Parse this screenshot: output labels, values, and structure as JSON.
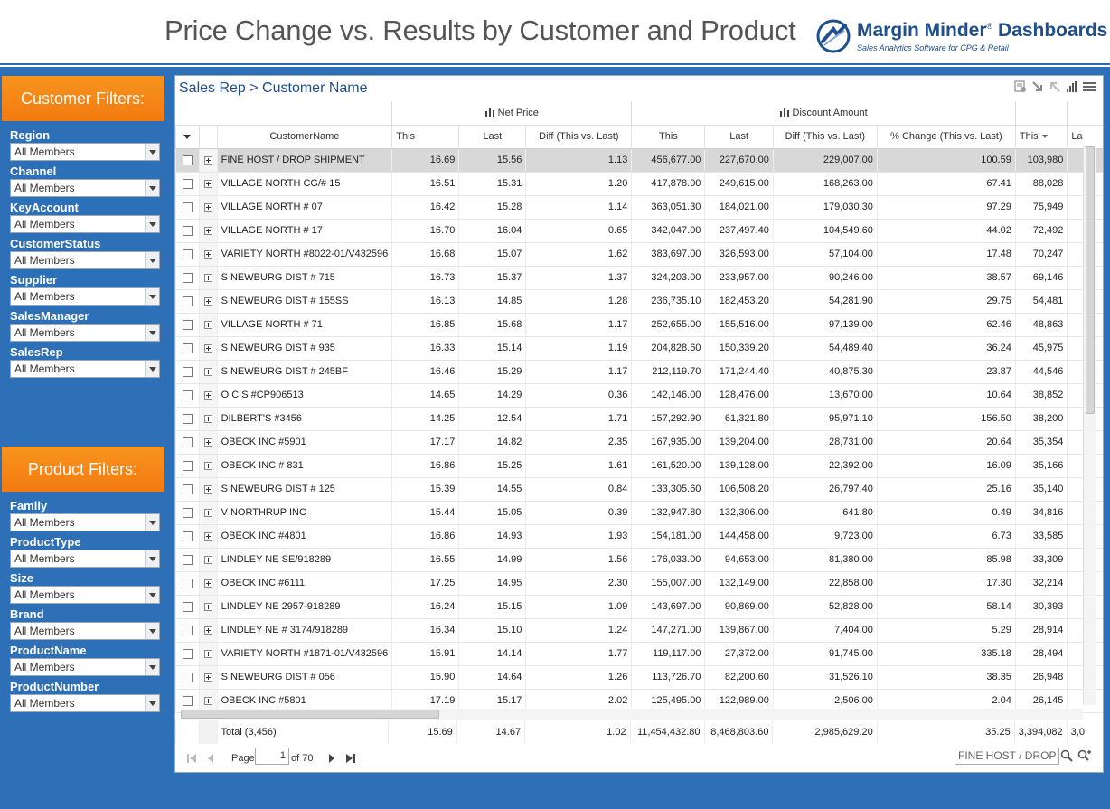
{
  "header": {
    "title": "Price Change vs. Results by Customer and Product",
    "logo_name": "Margin Minder",
    "logo_name_suffix": "Dashboards",
    "logo_tagline": "Sales Analytics Software for CPG & Retail"
  },
  "customer_filters": {
    "title": "Customer Filters:",
    "items": [
      {
        "label": "Region",
        "value": "All Members"
      },
      {
        "label": "Channel",
        "value": "All Members"
      },
      {
        "label": "KeyAccount",
        "value": "All Members"
      },
      {
        "label": "CustomerStatus",
        "value": "All Members"
      },
      {
        "label": "Supplier",
        "value": "All Members"
      },
      {
        "label": "SalesManager",
        "value": "All Members"
      },
      {
        "label": "SalesRep",
        "value": "All Members"
      }
    ]
  },
  "product_filters": {
    "title": "Product Filters:",
    "items": [
      {
        "label": "Family",
        "value": "All Members"
      },
      {
        "label": "ProductType",
        "value": "All Members"
      },
      {
        "label": "Size",
        "value": "All Members"
      },
      {
        "label": "Brand",
        "value": "All Members"
      },
      {
        "label": "ProductName",
        "value": "All Members"
      },
      {
        "label": "ProductNumber",
        "value": "All Members"
      }
    ]
  },
  "grid": {
    "breadcrumb": "Sales Rep > Customer Name",
    "groups": {
      "net_price": "Net Price",
      "discount_amount": "Discount Amount"
    },
    "columns": {
      "customer": "CustomerName",
      "np_this": "This",
      "np_last": "Last",
      "np_diff": "Diff (This vs. Last)",
      "da_this": "This",
      "da_last": "Last",
      "da_diff": "Diff (This vs. Last)",
      "da_pct": "% Change (This vs. Last)",
      "next_this": "This",
      "next_last": "La"
    },
    "rows": [
      [
        "FINE HOST / DROP SHIPMENT",
        "16.69",
        "15.56",
        "1.13",
        "456,677.00",
        "227,670.00",
        "229,007.00",
        "100.59",
        "103,980"
      ],
      [
        "VILLAGE NORTH CG/# 15",
        "16.51",
        "15.31",
        "1.20",
        "417,878.00",
        "249,615.00",
        "168,263.00",
        "67.41",
        "88,028"
      ],
      [
        "VILLAGE NORTH # 07",
        "16.42",
        "15.28",
        "1.14",
        "363,051.30",
        "184,021.00",
        "179,030.30",
        "97.29",
        "75,949"
      ],
      [
        "VILLAGE NORTH # 17",
        "16.70",
        "16.04",
        "0.65",
        "342,047.00",
        "237,497.40",
        "104,549.60",
        "44.02",
        "72,492"
      ],
      [
        "VARIETY NORTH #8022-01/V432596",
        "16.68",
        "15.07",
        "1.62",
        "383,697.00",
        "326,593.00",
        "57,104.00",
        "17.48",
        "70,247"
      ],
      [
        "S NEWBURG DIST # 715",
        "16.73",
        "15.37",
        "1.37",
        "324,203.00",
        "233,957.00",
        "90,246.00",
        "38.57",
        "69,146"
      ],
      [
        "S NEWBURG DIST # 155SS",
        "16.13",
        "14.85",
        "1.28",
        "236,735.10",
        "182,453.20",
        "54,281.90",
        "29.75",
        "54,481"
      ],
      [
        "VILLAGE NORTH # 71",
        "16.85",
        "15.68",
        "1.17",
        "252,655.00",
        "155,516.00",
        "97,139.00",
        "62.46",
        "48,863"
      ],
      [
        "S NEWBURG DIST # 935",
        "16.33",
        "15.14",
        "1.19",
        "204,828.60",
        "150,339.20",
        "54,489.40",
        "36.24",
        "45,975"
      ],
      [
        "S NEWBURG DIST # 245BF",
        "16.46",
        "15.29",
        "1.17",
        "212,119.70",
        "171,244.40",
        "40,875.30",
        "23.87",
        "44,546"
      ],
      [
        "O C S #CP906513",
        "14.65",
        "14.29",
        "0.36",
        "142,146.00",
        "128,476.00",
        "13,670.00",
        "10.64",
        "38,852"
      ],
      [
        "DILBERT'S #3456",
        "14.25",
        "12.54",
        "1.71",
        "157,292.90",
        "61,321.80",
        "95,971.10",
        "156.50",
        "38,200"
      ],
      [
        "OBECK INC #5901",
        "17.17",
        "14.82",
        "2.35",
        "167,935.00",
        "139,204.00",
        "28,731.00",
        "20.64",
        "35,354"
      ],
      [
        "OBECK INC # 831",
        "16.86",
        "15.25",
        "1.61",
        "161,520.00",
        "139,128.00",
        "22,392.00",
        "16.09",
        "35,166"
      ],
      [
        "S NEWBURG DIST # 125",
        "15.39",
        "14.55",
        "0.84",
        "133,305.60",
        "106,508.20",
        "26,797.40",
        "25.16",
        "35,140"
      ],
      [
        "V NORTHRUP INC",
        "15.44",
        "15.05",
        "0.39",
        "132,947.80",
        "132,306.00",
        "641.80",
        "0.49",
        "34,816"
      ],
      [
        "OBECK INC #4801",
        "16.86",
        "14.93",
        "1.93",
        "154,181.00",
        "144,458.00",
        "9,723.00",
        "6.73",
        "33,585"
      ],
      [
        "LINDLEY NE SE/918289",
        "16.55",
        "14.99",
        "1.56",
        "176,033.00",
        "94,653.00",
        "81,380.00",
        "85.98",
        "33,309"
      ],
      [
        "OBECK INC #6111",
        "17.25",
        "14.95",
        "2.30",
        "155,007.00",
        "132,149.00",
        "22,858.00",
        "17.30",
        "32,214"
      ],
      [
        "LINDLEY NE 2957-918289",
        "16.24",
        "15.15",
        "1.09",
        "143,697.00",
        "90,869.00",
        "52,828.00",
        "58.14",
        "30,393"
      ],
      [
        "LINDLEY NE # 3174/918289",
        "16.34",
        "15.10",
        "1.24",
        "147,271.00",
        "139,867.00",
        "7,404.00",
        "5.29",
        "28,914"
      ],
      [
        "VARIETY NORTH #1871-01/V432596",
        "15.91",
        "14.14",
        "1.77",
        "119,117.00",
        "27,372.00",
        "91,745.00",
        "335.18",
        "28,494"
      ],
      [
        "S NEWBURG DIST # 056",
        "15.90",
        "14.64",
        "1.26",
        "113,726.70",
        "82,200.60",
        "31,526.10",
        "38.35",
        "26,948"
      ],
      [
        "OBECK INC #5801",
        "17.19",
        "15.17",
        "2.02",
        "125,495.00",
        "122,989.00",
        "2,506.00",
        "2.04",
        "26,145"
      ]
    ],
    "total": [
      "Total (3,456)",
      "15.69",
      "14.67",
      "1.02",
      "11,454,432.80",
      "8,468,803.60",
      "2,985,629.20",
      "35.25",
      "3,394,082",
      "3,0"
    ]
  },
  "pager": {
    "page_label": "Page",
    "page_value": "1",
    "of_label": "of 70",
    "search_value": "FINE HOST / DROP"
  }
}
